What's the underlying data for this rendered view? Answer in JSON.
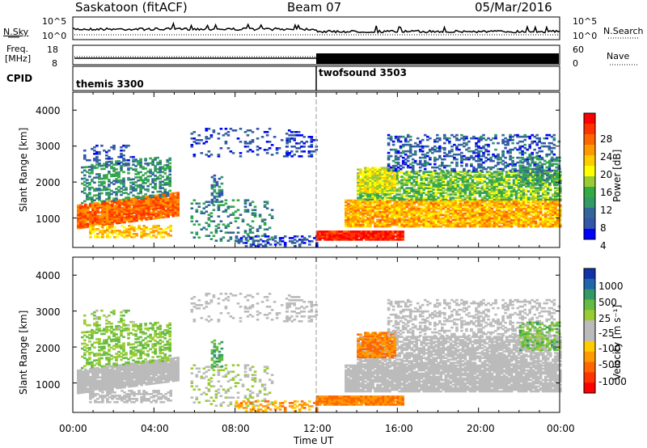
{
  "header": {
    "station": "Saskatoon (fitACF)",
    "beam": "Beam 07",
    "date": "05/Mar/2016"
  },
  "noise_panel": {
    "left_label": "N.Sky",
    "right_label": "N.Search",
    "left_ticks": [
      "10^5",
      "10^0"
    ],
    "right_ticks": [
      "10^5",
      "10^0"
    ]
  },
  "freq_panel": {
    "left_label_1": "Freq.",
    "left_label_2": "[MHz]",
    "left_ticks": [
      "18",
      "8"
    ],
    "right_ticks": [
      "60",
      "0"
    ],
    "right_label": "Nave"
  },
  "cpid_panel": {
    "label": "CPID",
    "programs": [
      {
        "name": "themis 3300",
        "start": 0,
        "end": 12
      },
      {
        "name": "twofsound 3503",
        "start": 12,
        "end": 24
      }
    ]
  },
  "power_colorbar": {
    "label": "Power [dB]",
    "ticks": [
      "28",
      "24",
      "20",
      "16",
      "12",
      "8",
      "4"
    ],
    "colors": [
      "#ff0000",
      "#ff3300",
      "#ff6600",
      "#ff9900",
      "#ffcc00",
      "#ffff00",
      "#99cc33",
      "#33aa44",
      "#339966",
      "#336699",
      "#3355aa",
      "#0000ff"
    ]
  },
  "velocity_colorbar": {
    "label": "Velocity [m s⁻¹]",
    "ticks": [
      "1000",
      "500",
      "25",
      "-25",
      "-100",
      "-500",
      "-1000"
    ],
    "colors": [
      "#1133aa",
      "#2266aa",
      "#339966",
      "#66bb44",
      "#99cc33",
      "#bbbbbb",
      "#bbbbbb",
      "#ffcc00",
      "#ff9900",
      "#ff6600",
      "#ff3300",
      "#ff0000"
    ]
  },
  "power_panel": {
    "ylabel": "Slant Range [km]",
    "yticks": [
      "4000",
      "3000",
      "2000",
      "1000"
    ]
  },
  "velocity_panel": {
    "ylabel": "Slant Range [km]",
    "yticks": [
      "4000",
      "3000",
      "2000",
      "1000"
    ]
  },
  "x_axis": {
    "label": "Time UT",
    "ticks": [
      "00:00",
      "04:00",
      "08:00",
      "12:00",
      "16:00",
      "20:00",
      "00:00"
    ]
  },
  "chart_data": {
    "type": "heatmap",
    "title": "Saskatoon (fitACF) Beam 07 05/Mar/2016",
    "xlabel": "Time UT",
    "ylabel": "Slant Range [km]",
    "xlim": [
      0,
      24
    ],
    "ylim": [
      180,
      4500
    ],
    "power_range_db": [
      0,
      30
    ],
    "velocity_range_ms": [
      -1000,
      1000
    ],
    "echo_regions": [
      {
        "t0": 0,
        "t1": 5,
        "r0": 500,
        "r1": 1600,
        "power": "18-30 dB",
        "velocity": "-25 to 25 m/s"
      },
      {
        "t0": 0.5,
        "t1": 4.5,
        "r0": 1400,
        "r1": 2600,
        "power": "4-16 dB",
        "velocity": "25-500 m/s"
      },
      {
        "t0": 6,
        "t1": 10,
        "r0": 300,
        "r1": 1600,
        "power": "4-16 dB",
        "velocity": "-100 to 500 m/s"
      },
      {
        "t0": 12,
        "t1": 16,
        "r0": 350,
        "r1": 650,
        "power": "24-30 dB",
        "velocity": "-100 to -25 m/s"
      },
      {
        "t0": 13.5,
        "t1": 24,
        "r0": 700,
        "r1": 2600,
        "power": "8-24 dB",
        "velocity": "-25 to 25 m/s"
      },
      {
        "t0": 13.5,
        "t1": 15.5,
        "r0": 1700,
        "r1": 2400,
        "power": "12-20 dB",
        "velocity": "-500 to -100 m/s"
      },
      {
        "t0": 16,
        "t1": 24,
        "r0": 2600,
        "r1": 3300,
        "power": "4-12 dB",
        "velocity": "-25 to 25 m/s"
      }
    ]
  }
}
